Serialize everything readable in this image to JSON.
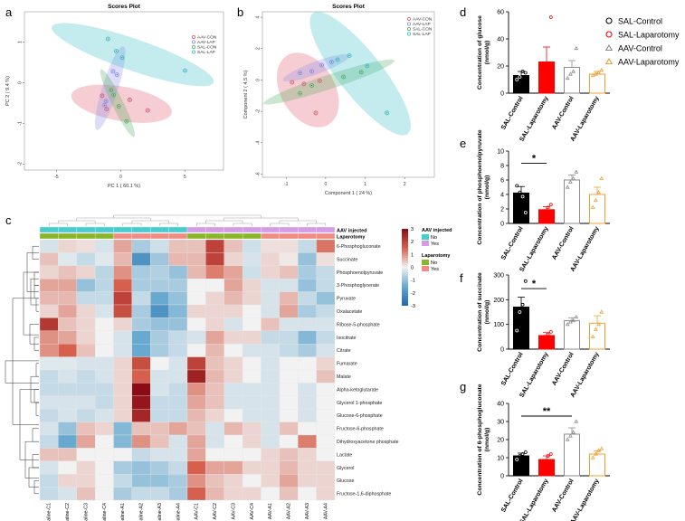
{
  "panel_letters": {
    "a": "a",
    "b": "b",
    "c": "c",
    "d": "d",
    "e": "e",
    "f": "f",
    "g": "g"
  },
  "colors": {
    "sal_control": "#000000",
    "sal_laparotomy": "#ff0000",
    "aav_control": "#8c8c8c",
    "aav_laparotomy": "#f0a030",
    "aav_injected_no": "#46cdd2",
    "aav_injected_yes": "#d59be6",
    "laparotomy_no": "#8ab62a",
    "laparotomy_yes": "#f08c84",
    "pca_aav_con": "#e05a6e",
    "pca_aav_lap": "#8a8ee8",
    "pca_sal_con": "#55b060",
    "pca_sal_lap": "#3bbdc8",
    "heat_low": "#2166ac",
    "heat_mid": "#f2f2f2",
    "heat_high": "#8b0a14"
  },
  "bar_legend": [
    "SAL-Control",
    "SAL-Laparotomy",
    "AAV-Control",
    "AAV-Laparotomy"
  ],
  "chart_data": [
    {
      "id": "a",
      "type": "scatter",
      "title": "Scores Plot",
      "xlabel": "PC 1 ( 60.1 %)",
      "ylabel": "PC 2 ( 9.4 %)",
      "xlim": [
        -7.5,
        8
      ],
      "ylim": [
        -2.15,
        1.75
      ],
      "xticks": [
        -5,
        0,
        5
      ],
      "yticks": [
        -2,
        -1,
        0,
        1
      ],
      "legend": [
        "AAV-CON",
        "AAV-LAP",
        "SAL-CON",
        "SAL-LAP"
      ],
      "series": [
        {
          "name": "AAV-CON",
          "points": [
            [
              -1.1,
              -0.65
            ],
            [
              -1.45,
              -0.32
            ],
            [
              0.7,
              -0.42
            ],
            [
              2.1,
              -0.68
            ]
          ]
        },
        {
          "name": "AAV-LAP",
          "points": [
            [
              -0.3,
              0.2
            ],
            [
              -1.15,
              -0.45
            ],
            [
              -1.25,
              -0.55
            ],
            [
              -0.6,
              0.28
            ]
          ]
        },
        {
          "name": "SAL-CON",
          "points": [
            [
              -0.15,
              -0.58
            ],
            [
              -0.75,
              -0.18
            ],
            [
              -0.55,
              -0.3
            ],
            [
              0.45,
              -0.95
            ]
          ]
        },
        {
          "name": "SAL-LAP",
          "points": [
            [
              -1.0,
              1.08
            ],
            [
              -0.35,
              0.78
            ],
            [
              0.1,
              0.62
            ],
            [
              5.0,
              0.3
            ]
          ]
        }
      ]
    },
    {
      "id": "b",
      "type": "scatter",
      "title": "Scores Plot",
      "xlabel": "Component 1 ( 24 %)",
      "ylabel": "Component 2 ( 4.5 %)",
      "xlim": [
        -1.6,
        2.75
      ],
      "ylim": [
        -6.2,
        4.35
      ],
      "xticks": [
        -1,
        0,
        1,
        2
      ],
      "yticks": [
        -6,
        -4,
        -2,
        0,
        2,
        4
      ],
      "legend": [
        "AAV-CON",
        "AAV-LAP",
        "SAL-CON",
        "SAL-LAP"
      ],
      "series": [
        {
          "name": "AAV-CON",
          "points": [
            [
              -0.85,
              -0.15
            ],
            [
              -0.55,
              -0.25
            ],
            [
              -0.25,
              -2.1
            ],
            [
              -0.15,
              -0.05
            ]
          ]
        },
        {
          "name": "AAV-LAP",
          "points": [
            [
              -0.65,
              0.45
            ],
            [
              -0.35,
              0.55
            ],
            [
              -0.1,
              0.95
            ],
            [
              0.15,
              1.15
            ]
          ]
        },
        {
          "name": "SAL-CON",
          "points": [
            [
              -0.65,
              -0.85
            ],
            [
              -0.35,
              -0.35
            ],
            [
              0.45,
              0.2
            ],
            [
              0.9,
              0.5
            ]
          ]
        },
        {
          "name": "SAL-LAP",
          "points": [
            [
              0.3,
              1.3
            ],
            [
              0.6,
              1.55
            ],
            [
              1.05,
              0.9
            ],
            [
              1.55,
              -2.1
            ]
          ]
        }
      ]
    },
    {
      "id": "c",
      "type": "heatmap",
      "columns": [
        "Saline-C1",
        "Saline-C2",
        "Saline-C3",
        "Saline-C4",
        "Saline-A1",
        "Saline-A2",
        "Saline-A3",
        "Saline-A4",
        "AAV-C1",
        "AAV-C2",
        "AAV-C3",
        "AAV-C4",
        "AAV-A1",
        "AAV-A2",
        "AAV-A3",
        "AAV-A4"
      ],
      "rows": [
        "6-Phosphogluconate",
        "Succinate",
        "Phosphoenolpyruvate",
        "3-Phosphoglycerate",
        "Pyruvate",
        "Oxalacetate",
        "Ribose-5-phosphate",
        "Isocitrate",
        "Citrate",
        "Fumarate",
        "Malate",
        "Alpha-ketoglutarate",
        "Glycerol 1-phosphate",
        "Glucose-6-phosphate",
        "Fructose-6-phosphate",
        "Dihydroxyacetone phosphate",
        "Lactate",
        "Glycerol",
        "Glucose",
        "Fructose-1,6-diphosphate"
      ],
      "annotations": {
        "aav_injected_label": "AAV injected",
        "laparotomy_label": "Laparotomy",
        "aav_injected": [
          "No",
          "No",
          "No",
          "No",
          "No",
          "No",
          "No",
          "No",
          "Yes",
          "Yes",
          "Yes",
          "Yes",
          "Yes",
          "Yes",
          "Yes",
          "Yes"
        ],
        "laparotomy": [
          "No",
          "No",
          "No",
          "No",
          "Yes",
          "Yes",
          "Yes",
          "Yes",
          "No",
          "No",
          "No",
          "No",
          "Yes",
          "Yes",
          "Yes",
          "Yes"
        ]
      },
      "legend_titles": {
        "aav": "AAV injected",
        "lap": "Laparotomy",
        "no": "No",
        "yes": "Yes"
      },
      "scale": {
        "min": -3,
        "max": 3,
        "ticks": [
          3,
          2,
          1,
          0,
          -1,
          -2,
          -3
        ]
      },
      "values": [
        [
          -0.3,
          0.3,
          0.2,
          -0.3,
          0.8,
          -0.8,
          -0.4,
          0.5,
          0.5,
          2.0,
          0.5,
          -0.4,
          0.2,
          0.2,
          -0.5,
          1.3
        ],
        [
          0.5,
          -0.2,
          -0.5,
          -0.2,
          0.6,
          -2.0,
          -0.9,
          0.6,
          0.6,
          2.0,
          0.3,
          -0.3,
          0.3,
          0.1,
          -1.0,
          0.2
        ],
        [
          0.3,
          0.5,
          0.3,
          -0.6,
          1.0,
          -0.8,
          -0.7,
          -1.0,
          0.6,
          1.2,
          0.8,
          -0.4,
          0.3,
          0.5,
          -0.8,
          -0.5
        ],
        [
          0.8,
          0.8,
          -1.0,
          -0.6,
          1.5,
          -0.8,
          -0.8,
          -0.8,
          0.0,
          0.0,
          0.8,
          0.3,
          -0.3,
          -0.3,
          -1.0,
          -0.5
        ],
        [
          0.6,
          0.6,
          -0.5,
          -0.5,
          2.0,
          -0.5,
          -1.5,
          -1.0,
          0.0,
          0.3,
          0.6,
          0.3,
          -0.3,
          0.6,
          -0.5,
          -1.0
        ],
        [
          0.3,
          0.8,
          0.3,
          -0.3,
          1.8,
          -0.8,
          -2.0,
          -1.2,
          0.3,
          0.3,
          0.3,
          0.0,
          -0.3,
          0.8,
          -0.8,
          -0.5
        ],
        [
          2.2,
          0.5,
          0.3,
          0.0,
          0.3,
          -0.8,
          -1.0,
          -1.0,
          0.0,
          0.3,
          -0.3,
          0.0,
          0.5,
          -0.3,
          -0.3,
          -0.3
        ],
        [
          1.0,
          0.8,
          0.3,
          0.0,
          -0.3,
          -1.5,
          -0.8,
          -0.5,
          -0.3,
          0.8,
          0.3,
          0.3,
          -0.5,
          -0.5,
          -1.2,
          -0.5
        ],
        [
          1.0,
          1.5,
          0.5,
          0.0,
          -0.3,
          -1.5,
          -0.8,
          -0.5,
          0.0,
          0.6,
          0.0,
          -0.3,
          -0.3,
          -0.5,
          -0.8,
          -0.3
        ],
        [
          -0.2,
          -0.2,
          -0.3,
          -0.3,
          0.3,
          1.8,
          0.0,
          -0.3,
          2.0,
          0.5,
          0.3,
          0.0,
          -0.3,
          0.0,
          0.0,
          0.3
        ],
        [
          -0.5,
          -0.3,
          -0.5,
          -0.3,
          0.3,
          1.5,
          -0.3,
          -0.3,
          2.6,
          0.6,
          0.3,
          0.0,
          -0.3,
          0.0,
          0.0,
          0.5
        ],
        [
          -0.5,
          -0.5,
          -0.5,
          -0.5,
          0.3,
          3.0,
          -0.3,
          -0.5,
          1.0,
          0.5,
          -0.3,
          -0.3,
          -0.3,
          0.0,
          -0.3,
          0.0
        ],
        [
          -0.3,
          -0.3,
          -0.3,
          -0.5,
          0.3,
          2.8,
          -0.5,
          -0.5,
          0.8,
          0.5,
          -0.3,
          -0.3,
          -0.3,
          0.0,
          -0.3,
          0.0
        ],
        [
          -0.5,
          -0.3,
          -0.5,
          -0.3,
          0.3,
          2.5,
          -0.5,
          -0.5,
          0.6,
          0.3,
          0.0,
          -0.3,
          -0.3,
          0.0,
          -0.3,
          0.0
        ],
        [
          -0.3,
          -1.0,
          0.5,
          0.3,
          -1.2,
          0.5,
          0.5,
          0.8,
          0.5,
          -0.3,
          0.6,
          0.3,
          -0.3,
          0.5,
          0.0,
          0.0
        ],
        [
          -0.5,
          -1.5,
          0.8,
          0.0,
          -1.2,
          1.0,
          0.5,
          -0.3,
          0.8,
          -0.3,
          0.0,
          0.3,
          -0.3,
          0.0,
          1.2,
          0.0
        ],
        [
          0.5,
          0.5,
          0.0,
          0.0,
          0.0,
          -0.5,
          -0.3,
          -0.3,
          0.8,
          0.0,
          0.0,
          0.0,
          0.3,
          0.5,
          0.3,
          0.0
        ],
        [
          -0.3,
          0.0,
          0.3,
          0.0,
          -0.8,
          -1.0,
          -0.8,
          -0.5,
          1.5,
          0.8,
          0.8,
          0.3,
          0.3,
          0.6,
          0.3,
          0.3
        ],
        [
          -0.5,
          0.3,
          0.3,
          0.0,
          -0.5,
          -1.0,
          -1.0,
          -0.8,
          1.0,
          0.5,
          0.3,
          0.0,
          0.3,
          0.8,
          0.3,
          0.3
        ],
        [
          -0.5,
          -0.3,
          0.5,
          0.0,
          -0.8,
          -0.5,
          -0.5,
          -0.8,
          1.5,
          0.6,
          0.3,
          0.3,
          0.0,
          0.5,
          0.0,
          0.3
        ]
      ]
    },
    {
      "id": "d",
      "type": "bar",
      "ylabel": "Concentration of glucose\n(nmol/g)",
      "categories": [
        "SAL-Control",
        "SAL-Laparotomy",
        "AAV-Control",
        "AAV-Laparotomy"
      ],
      "values": [
        13,
        23,
        19,
        14
      ],
      "errors": [
        3,
        11,
        5,
        2
      ],
      "ylim": [
        0,
        60
      ],
      "yticks": [
        0,
        20,
        40,
        60
      ],
      "points": [
        [
          10,
          12,
          16,
          15
        ],
        [
          5,
          17,
          20,
          56
        ],
        [
          11,
          14,
          16,
          33
        ],
        [
          13,
          14,
          15,
          17
        ]
      ],
      "significance": []
    },
    {
      "id": "e",
      "type": "bar",
      "ylabel": "Concentration of phosphoenolpyruvate\n(nmol/g)",
      "categories": [
        "SAL-Control",
        "SAL-Laparotomy",
        "AAV-Control",
        "AAV-Laparotomy"
      ],
      "values": [
        4.2,
        1.9,
        6.0,
        4.0
      ],
      "errors": [
        0.9,
        0.4,
        0.7,
        1.0
      ],
      "ylim": [
        0,
        10
      ],
      "yticks": [
        0,
        2,
        4,
        6,
        8,
        10
      ],
      "points": [
        [
          5.2,
          4.3,
          3.7,
          1.5
        ],
        [
          1.3,
          1.7,
          2.2,
          2.6
        ],
        [
          5.0,
          5.7,
          6.2,
          7.1
        ],
        [
          2.2,
          3.2,
          4.3,
          6.2
        ]
      ],
      "significance": [
        {
          "from": 0,
          "to": 1,
          "label": "*",
          "y": 8.3
        }
      ]
    },
    {
      "id": "f",
      "type": "bar",
      "ylabel": "Concentration of succinate\n(nmol/g)",
      "categories": [
        "SAL-Control",
        "SAL-Laparotomy",
        "AAV-Control",
        "AAV-Laparotomy"
      ],
      "values": [
        170,
        55,
        115,
        105
      ],
      "errors": [
        40,
        12,
        12,
        30
      ],
      "ylim": [
        0,
        300
      ],
      "yticks": [
        0,
        100,
        200,
        300
      ],
      "points": [
        [
          75,
          150,
          180,
          275
        ],
        [
          35,
          50,
          60,
          70
        ],
        [
          100,
          110,
          115,
          130
        ],
        [
          50,
          80,
          100,
          150
        ]
      ],
      "significance": [
        {
          "from": 0,
          "to": 1,
          "label": "*",
          "y": 245
        }
      ]
    },
    {
      "id": "g",
      "type": "bar",
      "ylabel": "Concentration of 6-phosphogluconate\n(nmol/g)",
      "categories": [
        "SAL-Control",
        "SAL-Laparotomy",
        "AAV-Control",
        "AAV-Laparotomy"
      ],
      "values": [
        11,
        9,
        23,
        12
      ],
      "errors": [
        1.5,
        2,
        3.5,
        1.8
      ],
      "ylim": [
        0,
        40
      ],
      "yticks": [
        0,
        10,
        20,
        30,
        40
      ],
      "points": [
        [
          9,
          11,
          12,
          13
        ],
        [
          6,
          8,
          11,
          12
        ],
        [
          20,
          22,
          24,
          30
        ],
        [
          10,
          12,
          14,
          15
        ]
      ],
      "significance": [
        {
          "from": 0,
          "to": 2,
          "label": "**",
          "y": 33
        }
      ]
    }
  ]
}
